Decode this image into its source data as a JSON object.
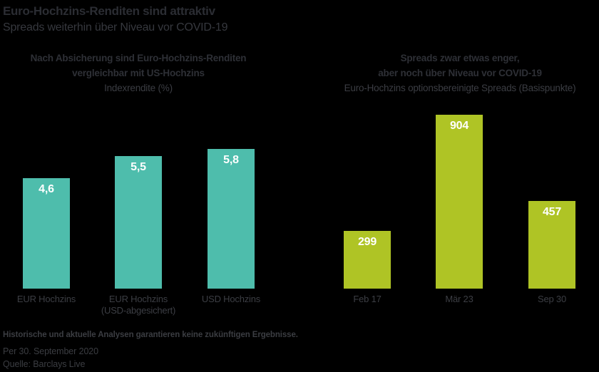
{
  "page": {
    "title": "Euro-Hochzins-Renditen sind attraktiv",
    "subtitle": "Spreads weiterhin über Niveau vor COVID-19",
    "background_color": "#000000"
  },
  "footer": {
    "disclaimer": "Historische und aktuelle Analysen garantieren keine zukünftigen Ergebnisse.",
    "as_of": "Per 30. September 2020",
    "source": "Quelle: Barclays Live"
  },
  "chart_data": [
    {
      "type": "bar",
      "title_lines": [
        "Nach Absicherung sind Euro-Hochzins-Renditen",
        "vergleichbar mit US-Hochzins"
      ],
      "subtitle": "Indexrendite (%)",
      "ylabel": "Indexrendite (%)",
      "xlabel": "",
      "categories": [
        "EUR Hochzins",
        "EUR Hochzins\n(USD-abgesichert)",
        "USD Hochzins"
      ],
      "values": [
        4.6,
        5.5,
        5.8
      ],
      "value_labels": [
        "4,6",
        "5,5",
        "5,8"
      ],
      "bar_color": "#4EBDAC",
      "value_label_color": "#ffffff",
      "ylim": [
        0,
        5.8
      ],
      "grid": false,
      "legend": "none"
    },
    {
      "type": "bar",
      "title_lines": [
        "Spreads zwar etwas enger,",
        "aber noch über Niveau vor COVID-19"
      ],
      "subtitle": "Euro-Hochzins optionsbereinigte Spreads (Basispunkte)",
      "ylabel": "Euro-Hochzins optionsbereinigte Spreads (Basispunkte)",
      "xlabel": "",
      "categories": [
        "Feb 17",
        "Mär 23",
        "Sep 30"
      ],
      "values": [
        299,
        904,
        457
      ],
      "value_labels": [
        "299",
        "904",
        "457"
      ],
      "bar_color": "#AFC425",
      "value_label_color": "#ffffff",
      "ylim": [
        0,
        904
      ],
      "grid": false,
      "legend": "none"
    }
  ]
}
